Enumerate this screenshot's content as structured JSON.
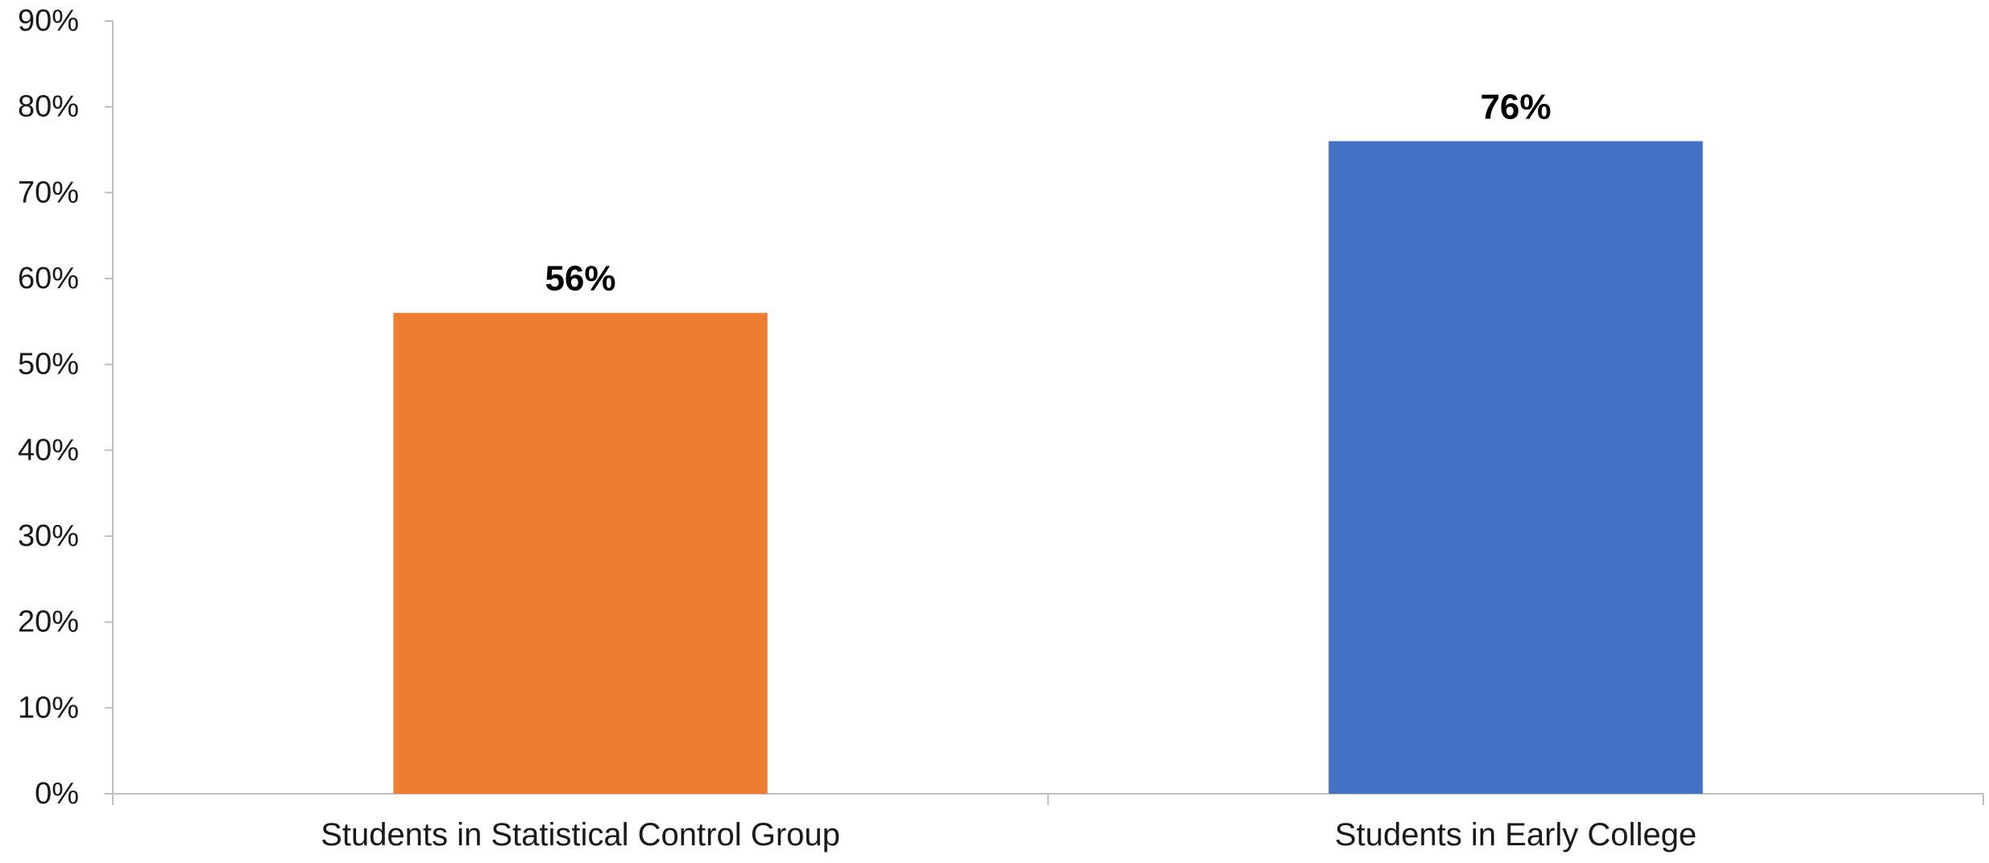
{
  "chart_data": {
    "type": "bar",
    "title": "",
    "xlabel": "",
    "ylabel": "",
    "categories": [
      "Students in Statistical Control Group",
      "Students in Early College"
    ],
    "values": [
      56,
      76
    ],
    "value_labels": [
      "56%",
      "76%"
    ],
    "colors": [
      "#ED7D31",
      "#4472C4"
    ],
    "ylim": [
      0,
      90
    ],
    "yticks": [
      0,
      10,
      20,
      30,
      40,
      50,
      60,
      70,
      80,
      90
    ],
    "ytick_labels": [
      "0%",
      "10%",
      "20%",
      "30%",
      "40%",
      "50%",
      "60%",
      "70%",
      "80%",
      "90%"
    ],
    "grid": false,
    "legend": "none"
  }
}
